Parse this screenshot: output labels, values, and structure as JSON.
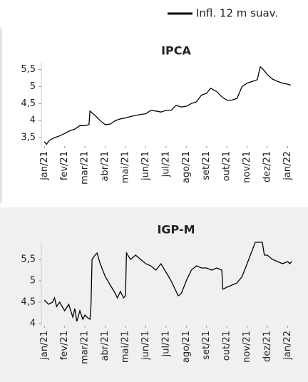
{
  "chart_data": [
    {
      "type": "line",
      "title": "IPCA",
      "x": [
        0,
        0.1,
        0.25,
        0.5,
        0.75,
        1,
        1.25,
        1.5,
        1.75,
        2,
        2.2,
        2.25,
        2.5,
        2.75,
        3,
        3.25,
        3.5,
        3.75,
        4,
        4.25,
        4.5,
        4.75,
        5,
        5.25,
        5.5,
        5.75,
        6,
        6.25,
        6.5,
        6.75,
        7,
        7.25,
        7.5,
        7.75,
        8,
        8.2,
        8.5,
        8.75,
        9,
        9.25,
        9.5,
        9.75,
        10,
        10.25,
        10.5,
        10.65,
        10.8,
        11,
        11.25,
        11.5,
        11.75,
        12,
        12.15
      ],
      "series": [
        {
          "name": "Infl. 12 m suav.",
          "color": "#000000",
          "values": [
            3.38,
            3.3,
            3.42,
            3.5,
            3.55,
            3.62,
            3.7,
            3.75,
            3.85,
            3.85,
            3.88,
            4.28,
            4.15,
            4.0,
            3.88,
            3.9,
            4.0,
            4.05,
            4.08,
            4.12,
            4.15,
            4.18,
            4.2,
            4.3,
            4.28,
            4.25,
            4.3,
            4.3,
            4.45,
            4.4,
            4.42,
            4.5,
            4.55,
            4.75,
            4.8,
            4.95,
            4.85,
            4.7,
            4.6,
            4.6,
            4.65,
            5.0,
            5.1,
            5.15,
            5.2,
            5.58,
            5.5,
            5.35,
            5.22,
            5.15,
            5.1,
            5.07,
            5.04
          ]
        }
      ],
      "xlim": [
        -0.15,
        12.3
      ],
      "xticks": [
        {
          "value": 0,
          "label": "jan/21"
        },
        {
          "value": 1,
          "label": "fev/21"
        },
        {
          "value": 2,
          "label": "mar/21"
        },
        {
          "value": 3,
          "label": "abr/21"
        },
        {
          "value": 4,
          "label": "mai/21"
        },
        {
          "value": 5,
          "label": "jun/21"
        },
        {
          "value": 6,
          "label": "jul/21"
        },
        {
          "value": 7,
          "label": "ago/21"
        },
        {
          "value": 8,
          "label": "set/21"
        },
        {
          "value": 9,
          "label": "out/21"
        },
        {
          "value": 10,
          "label": "nov/21"
        },
        {
          "value": 11,
          "label": "dez/21"
        },
        {
          "value": 12,
          "label": "jan/22"
        }
      ],
      "ylim": [
        3.25,
        5.7
      ],
      "yticks": [
        {
          "value": 3.5,
          "label": "3,5"
        },
        4,
        {
          "value": 4.5,
          "label": "4,5"
        },
        5,
        {
          "value": 5.5,
          "label": "5,5"
        }
      ]
    },
    {
      "type": "line",
      "title": "IGP-M",
      "x": [
        0,
        0.2,
        0.4,
        0.5,
        0.6,
        0.75,
        1,
        1.2,
        1.4,
        1.5,
        1.6,
        1.75,
        1.9,
        2,
        2.1,
        2.25,
        2.3,
        2.35,
        2.5,
        2.6,
        2.75,
        3,
        3.25,
        3.5,
        3.6,
        3.75,
        3.9,
        4,
        4.05,
        4.25,
        4.5,
        4.75,
        5,
        5.25,
        5.5,
        5.75,
        6,
        6.25,
        6.5,
        6.6,
        6.75,
        7,
        7.25,
        7.5,
        7.75,
        8,
        8.25,
        8.5,
        8.75,
        8.8,
        9,
        9.25,
        9.5,
        9.75,
        10,
        10.2,
        10.4,
        10.75,
        10.85,
        11,
        11.25,
        11.5,
        11.75,
        12,
        12.1,
        12.2
      ],
      "series": [
        {
          "color": "#000000",
          "values": [
            4.55,
            4.45,
            4.5,
            4.6,
            4.4,
            4.5,
            4.3,
            4.45,
            4.15,
            4.35,
            4.05,
            4.3,
            4.1,
            4.2,
            4.15,
            4.1,
            4.45,
            5.5,
            5.6,
            5.65,
            5.4,
            5.1,
            4.9,
            4.7,
            4.6,
            4.75,
            4.6,
            4.65,
            5.65,
            5.5,
            5.6,
            5.5,
            5.4,
            5.35,
            5.25,
            5.4,
            5.2,
            5.0,
            4.75,
            4.65,
            4.7,
            5.0,
            5.25,
            5.35,
            5.3,
            5.3,
            5.25,
            5.3,
            5.25,
            4.8,
            4.85,
            4.9,
            4.95,
            5.1,
            5.4,
            5.65,
            5.9,
            5.9,
            5.6,
            5.6,
            5.5,
            5.45,
            5.4,
            5.45,
            5.4,
            5.45
          ]
        }
      ],
      "xlim": [
        -0.15,
        12.3
      ],
      "xticks": [
        {
          "value": 0,
          "label": "jan/21"
        },
        {
          "value": 1,
          "label": "fev/21"
        },
        {
          "value": 2,
          "label": "mar/21"
        },
        {
          "value": 3,
          "label": "abr/21"
        },
        {
          "value": 4,
          "label": "mai/21"
        },
        {
          "value": 5,
          "label": "jun/21"
        },
        {
          "value": 6,
          "label": "jul/21"
        },
        {
          "value": 7,
          "label": "ago/21"
        },
        {
          "value": 8,
          "label": "set/21"
        },
        {
          "value": 9,
          "label": "out/21"
        },
        {
          "value": 10,
          "label": "nov/21"
        },
        {
          "value": 11,
          "label": "dez/21"
        },
        {
          "value": 12,
          "label": "jan/22"
        }
      ],
      "ylim": [
        3.95,
        5.9
      ],
      "yticks": [
        4,
        {
          "value": 4.5,
          "label": "4,5"
        },
        5,
        {
          "value": 5.5,
          "label": "5,5"
        }
      ]
    }
  ]
}
